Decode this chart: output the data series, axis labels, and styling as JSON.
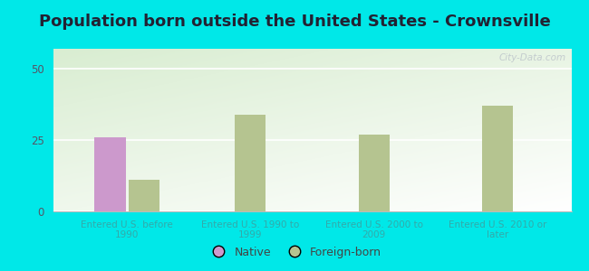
{
  "title": "Population born outside the United States - Crownsville",
  "categories": [
    "Entered U.S. before\n1990",
    "Entered U.S. 1990 to\n1999",
    "Entered U.S. 2000 to\n2009",
    "Entered U.S. 2010 or\nlater"
  ],
  "native_values": [
    26,
    0,
    0,
    0
  ],
  "foreign_values": [
    11,
    34,
    27,
    37
  ],
  "native_color": "#cc99cc",
  "foreign_color": "#b5c490",
  "background_color": "#00e8e8",
  "plot_bg_top_left": "#d6ecd2",
  "plot_bg_bottom_right": "#f8fdf5",
  "title_fontsize": 13,
  "title_color": "#222233",
  "xlabel_color": "#33aaaa",
  "ylabel_ticks": [
    0,
    25,
    50
  ],
  "ylim": [
    0,
    57
  ],
  "bar_width": 0.25,
  "legend_native": "Native",
  "legend_foreign": "Foreign-born",
  "watermark": "City-Data.com"
}
